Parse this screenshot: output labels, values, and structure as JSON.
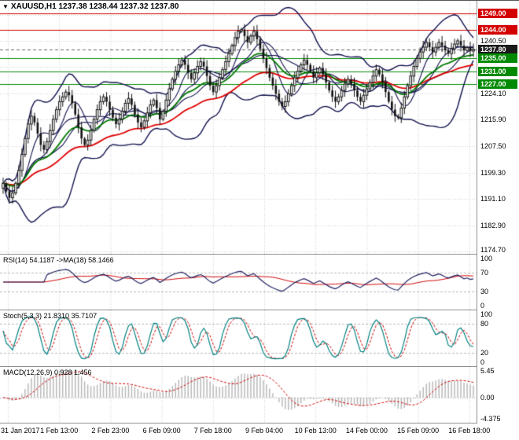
{
  "window": {
    "symbol_period": "XAUUSD,H1",
    "ohlc_text": "1237.38 1238.44 1237.32 1237.80"
  },
  "chart_data": {
    "type": "candlestick",
    "symbol": "XAUUSD",
    "timeframe": "H1",
    "open": 1237.38,
    "high": 1238.44,
    "low": 1237.32,
    "close": 1237.8,
    "x_labels": [
      "31 Jan 2017",
      "1 Feb 13:00",
      "2 Feb 23:00",
      "6 Feb 09:00",
      "7 Feb 18:00",
      "9 Feb 04:00",
      "10 Feb 13:00",
      "14 Feb 00:00",
      "15 Feb 09:00",
      "16 Feb 18:00"
    ],
    "main": {
      "y_range": [
        1174.0,
        1253.0
      ],
      "y_ticks": [
        {
          "label": "1240.50",
          "value": 1240.5
        },
        {
          "label": "1224.10",
          "value": 1224.1
        },
        {
          "label": "1215.90",
          "value": 1215.9
        },
        {
          "label": "1207.50",
          "value": 1207.5
        },
        {
          "label": "1199.30",
          "value": 1199.3
        },
        {
          "label": "1191.10",
          "value": 1191.1
        },
        {
          "label": "1182.90",
          "value": 1182.9
        },
        {
          "label": "1174.70",
          "value": 1174.7
        }
      ],
      "levels": [
        {
          "label": "1249.00",
          "value": 1249.0,
          "color": "#d40000",
          "type": "resistance"
        },
        {
          "label": "1244.00",
          "value": 1244.0,
          "color": "#d40000",
          "type": "resistance"
        },
        {
          "label": "1237.80",
          "value": 1237.8,
          "color": "#1a1a1a",
          "type": "bid"
        },
        {
          "label": "1235.00",
          "value": 1235.0,
          "color": "#008a00",
          "type": "support"
        },
        {
          "label": "1231.00",
          "value": 1231.0,
          "color": "#008a00",
          "type": "support"
        },
        {
          "label": "1227.00",
          "value": 1227.0,
          "color": "#008a00",
          "type": "support"
        }
      ],
      "closes": [
        1196.0,
        1193.5,
        1191.5,
        1193.0,
        1196.0,
        1200.0,
        1205.0,
        1210.0,
        1214.5,
        1217.0,
        1215.0,
        1211.5,
        1208.0,
        1206.5,
        1209.0,
        1212.5,
        1216.0,
        1219.0,
        1221.5,
        1223.0,
        1224.5,
        1223.5,
        1221.0,
        1217.5,
        1213.5,
        1210.0,
        1208.0,
        1209.5,
        1212.5,
        1216.0,
        1219.0,
        1221.5,
        1223.0,
        1221.5,
        1219.0,
        1216.5,
        1214.5,
        1216.0,
        1218.5,
        1221.0,
        1222.5,
        1220.5,
        1217.5,
        1215.0,
        1213.5,
        1215.5,
        1218.0,
        1220.5,
        1222.0,
        1219.5,
        1216.0,
        1218.5,
        1222.0,
        1225.5,
        1228.5,
        1231.0,
        1233.0,
        1234.5,
        1233.0,
        1230.5,
        1228.5,
        1230.5,
        1232.5,
        1234.0,
        1232.5,
        1229.5,
        1226.5,
        1224.5,
        1226.5,
        1229.0,
        1231.5,
        1234.0,
        1236.5,
        1239.0,
        1241.5,
        1243.5,
        1244.0,
        1242.0,
        1240.0,
        1242.0,
        1243.5,
        1241.0,
        1238.0,
        1235.0,
        1232.0,
        1229.0,
        1226.5,
        1224.0,
        1221.5,
        1220.0,
        1221.5,
        1224.0,
        1226.5,
        1229.0,
        1231.0,
        1233.0,
        1234.5,
        1233.0,
        1231.0,
        1229.0,
        1230.5,
        1232.0,
        1230.0,
        1227.5,
        1225.0,
        1223.0,
        1221.5,
        1223.0,
        1225.0,
        1227.0,
        1228.5,
        1227.0,
        1225.0,
        1223.0,
        1221.5,
        1223.5,
        1225.5,
        1227.5,
        1229.5,
        1231.5,
        1230.0,
        1227.5,
        1224.5,
        1221.5,
        1219.0,
        1217.0,
        1216.5,
        1219.5,
        1223.0,
        1226.5,
        1229.5,
        1232.5,
        1235.0,
        1237.0,
        1238.5,
        1240.0,
        1238.5,
        1237.0,
        1238.5,
        1240.0,
        1239.0,
        1237.5,
        1236.5,
        1238.0,
        1239.5,
        1240.5,
        1239.0,
        1237.5,
        1238.4,
        1237.3,
        1237.8
      ],
      "overlays": {
        "bollinger": "BB(20,2)",
        "bands_color": "#10104e",
        "ma_fast": {
          "period": 21,
          "color": "#007800"
        },
        "ma_slow": {
          "period": 45,
          "color": "#e00000"
        }
      }
    },
    "rsi": {
      "label": "RSI(14) 54.1187  ->MA(18) 58.1466",
      "period": 14,
      "value": 54.1187,
      "ma_period": 18,
      "ma_value": 58.1466,
      "line_color": "#202060",
      "ma_color": "#d00000",
      "levels": [
        70,
        30
      ],
      "y_ticks": [
        {
          "label": "100",
          "value": 100
        },
        {
          "label": "70",
          "value": 70
        },
        {
          "label": "30",
          "value": 30
        },
        {
          "label": "0",
          "value": 0
        }
      ]
    },
    "stoch": {
      "label": "Stoch(5,3,3) 21.8310 35.7107",
      "k": 21.831,
      "d": 35.7107,
      "k_color": "#008080",
      "d_color": "#d00000",
      "levels": [
        80,
        20
      ],
      "y_ticks": [
        {
          "label": "100",
          "value": 100
        },
        {
          "label": "80",
          "value": 80
        },
        {
          "label": "20",
          "value": 20
        },
        {
          "label": "0",
          "value": 0
        }
      ]
    },
    "macd": {
      "label": "MACD(12,26,9) 0.928 1.456",
      "value": 0.928,
      "signal": 1.456,
      "hist_color": "#b4b4b4",
      "signal_color": "#d00000",
      "y_ticks": [
        {
          "label": "5.45",
          "value": 5.45
        },
        {
          "label": "0.00",
          "value": 0
        },
        {
          "label": "-4.375",
          "value": -4.375
        }
      ]
    }
  }
}
